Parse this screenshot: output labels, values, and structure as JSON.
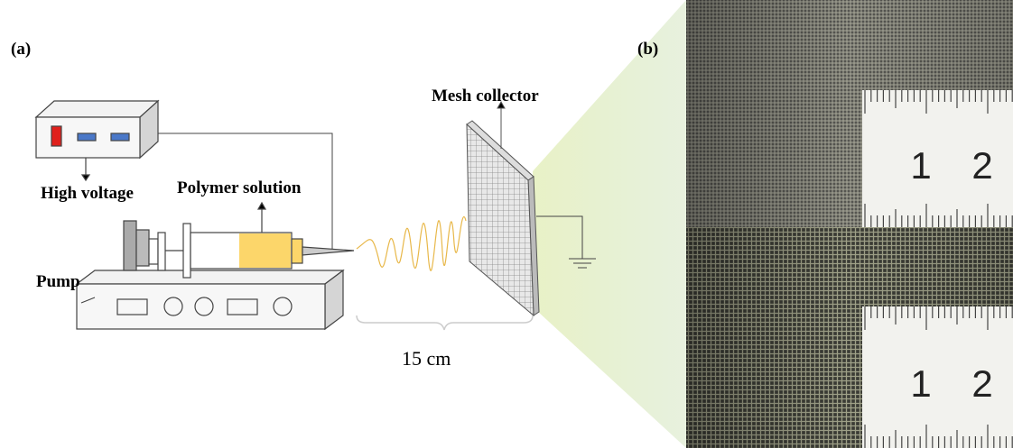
{
  "labels": {
    "a": "(a)",
    "b": "(b)",
    "high_voltage": "High voltage",
    "polymer_solution": "Polymer solution",
    "pump": "Pump",
    "mesh_collector": "Mesh collector",
    "distance": "15 cm"
  },
  "ruler_top": [
    "1",
    "2"
  ],
  "ruler_bottom": [
    "1",
    "2"
  ]
}
